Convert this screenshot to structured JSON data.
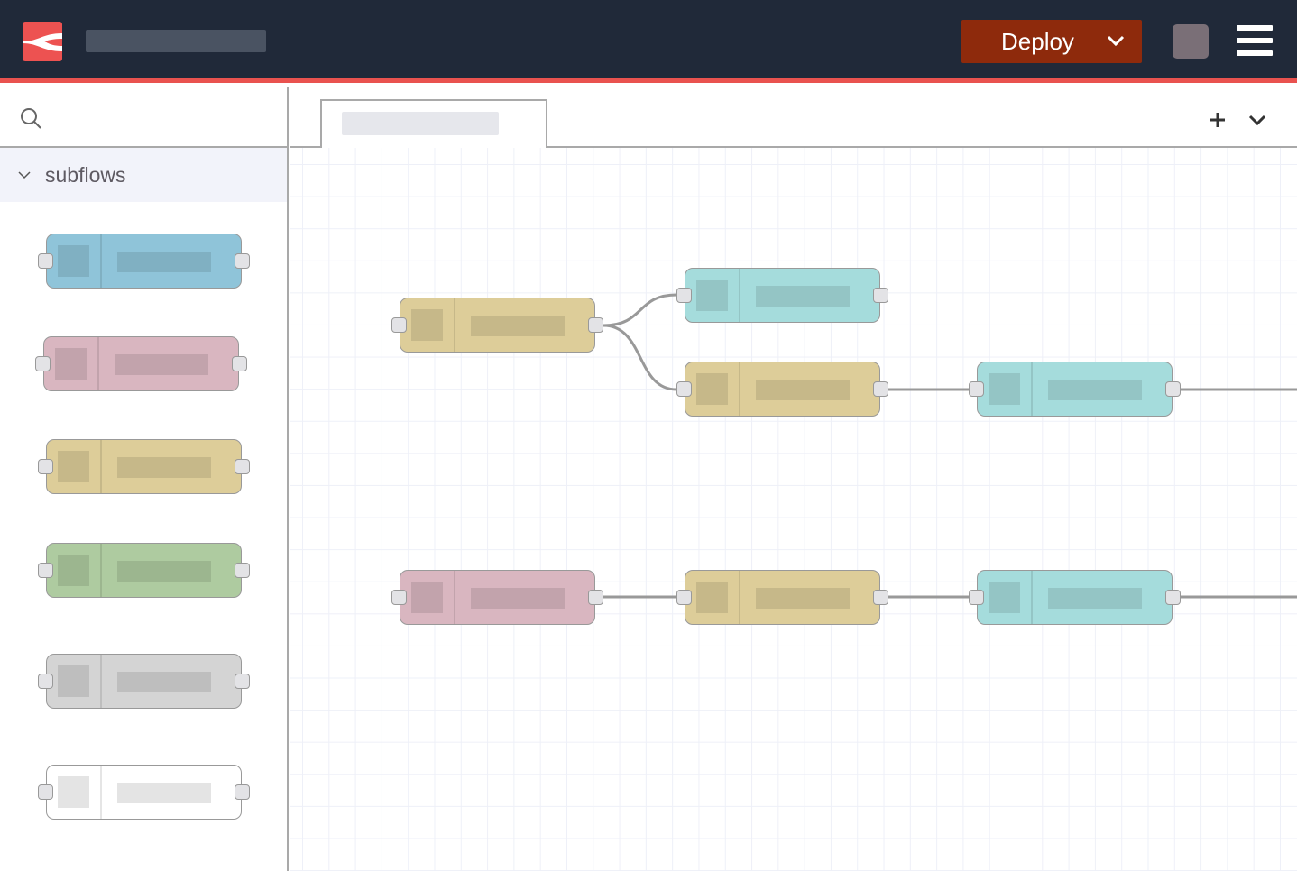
{
  "header": {
    "deploy_label": "Deploy",
    "accent": "#e9524f",
    "deploy_color": "#8e2a0c"
  },
  "palette": {
    "category": "subflows",
    "node_colors": [
      "#8fc4d9",
      "#d9b6c0",
      "#ddcd99",
      "#aecba0",
      "#d4d4d4",
      "#ffffff"
    ]
  },
  "flow": {
    "node_colors": {
      "tan": "#ddcd99",
      "cyan": "#a5dcdc",
      "pink": "#d9b6c0"
    }
  }
}
